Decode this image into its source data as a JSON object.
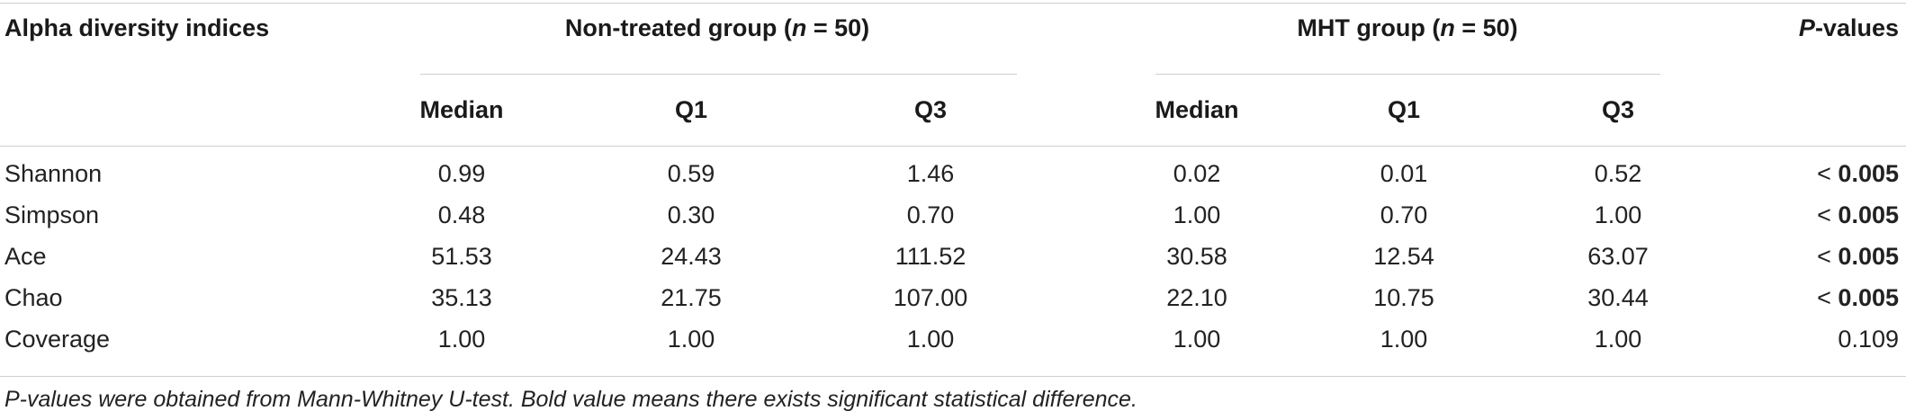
{
  "header": {
    "row_label": "Alpha diversity indices",
    "group1_prefix": "Non-treated group (",
    "group1_n": "n",
    "group1_suffix": " = 50)",
    "group2_prefix": "MHT group (",
    "group2_n": "n",
    "group2_suffix": " = 50)",
    "pvalues_italic": "P",
    "pvalues_rest": "-values",
    "subcolumns": [
      "Median",
      "Q1",
      "Q3",
      "Median",
      "Q1",
      "Q3"
    ]
  },
  "rows": [
    {
      "label": "Shannon",
      "values": [
        "0.99",
        "0.59",
        "1.46",
        "0.02",
        "0.01",
        "0.52"
      ],
      "p_prefix": "< ",
      "p_value": "0.005",
      "p_bold": true
    },
    {
      "label": "Simpson",
      "values": [
        "0.48",
        "0.30",
        "0.70",
        "1.00",
        "0.70",
        "1.00"
      ],
      "p_prefix": "< ",
      "p_value": "0.005",
      "p_bold": true
    },
    {
      "label": "Ace",
      "values": [
        "51.53",
        "24.43",
        "111.52",
        "30.58",
        "12.54",
        "63.07"
      ],
      "p_prefix": "< ",
      "p_value": "0.005",
      "p_bold": true
    },
    {
      "label": "Chao",
      "values": [
        "35.13",
        "21.75",
        "107.00",
        "22.10",
        "10.75",
        "30.44"
      ],
      "p_prefix": "< ",
      "p_value": "0.005",
      "p_bold": true
    },
    {
      "label": "Coverage",
      "values": [
        "1.00",
        "1.00",
        "1.00",
        "1.00",
        "1.00",
        "1.00"
      ],
      "p_prefix": "",
      "p_value": "0.109",
      "p_bold": false
    }
  ],
  "footnote": "P-values were obtained from Mann-Whitney U-test. Bold value means there exists significant statistical difference."
}
